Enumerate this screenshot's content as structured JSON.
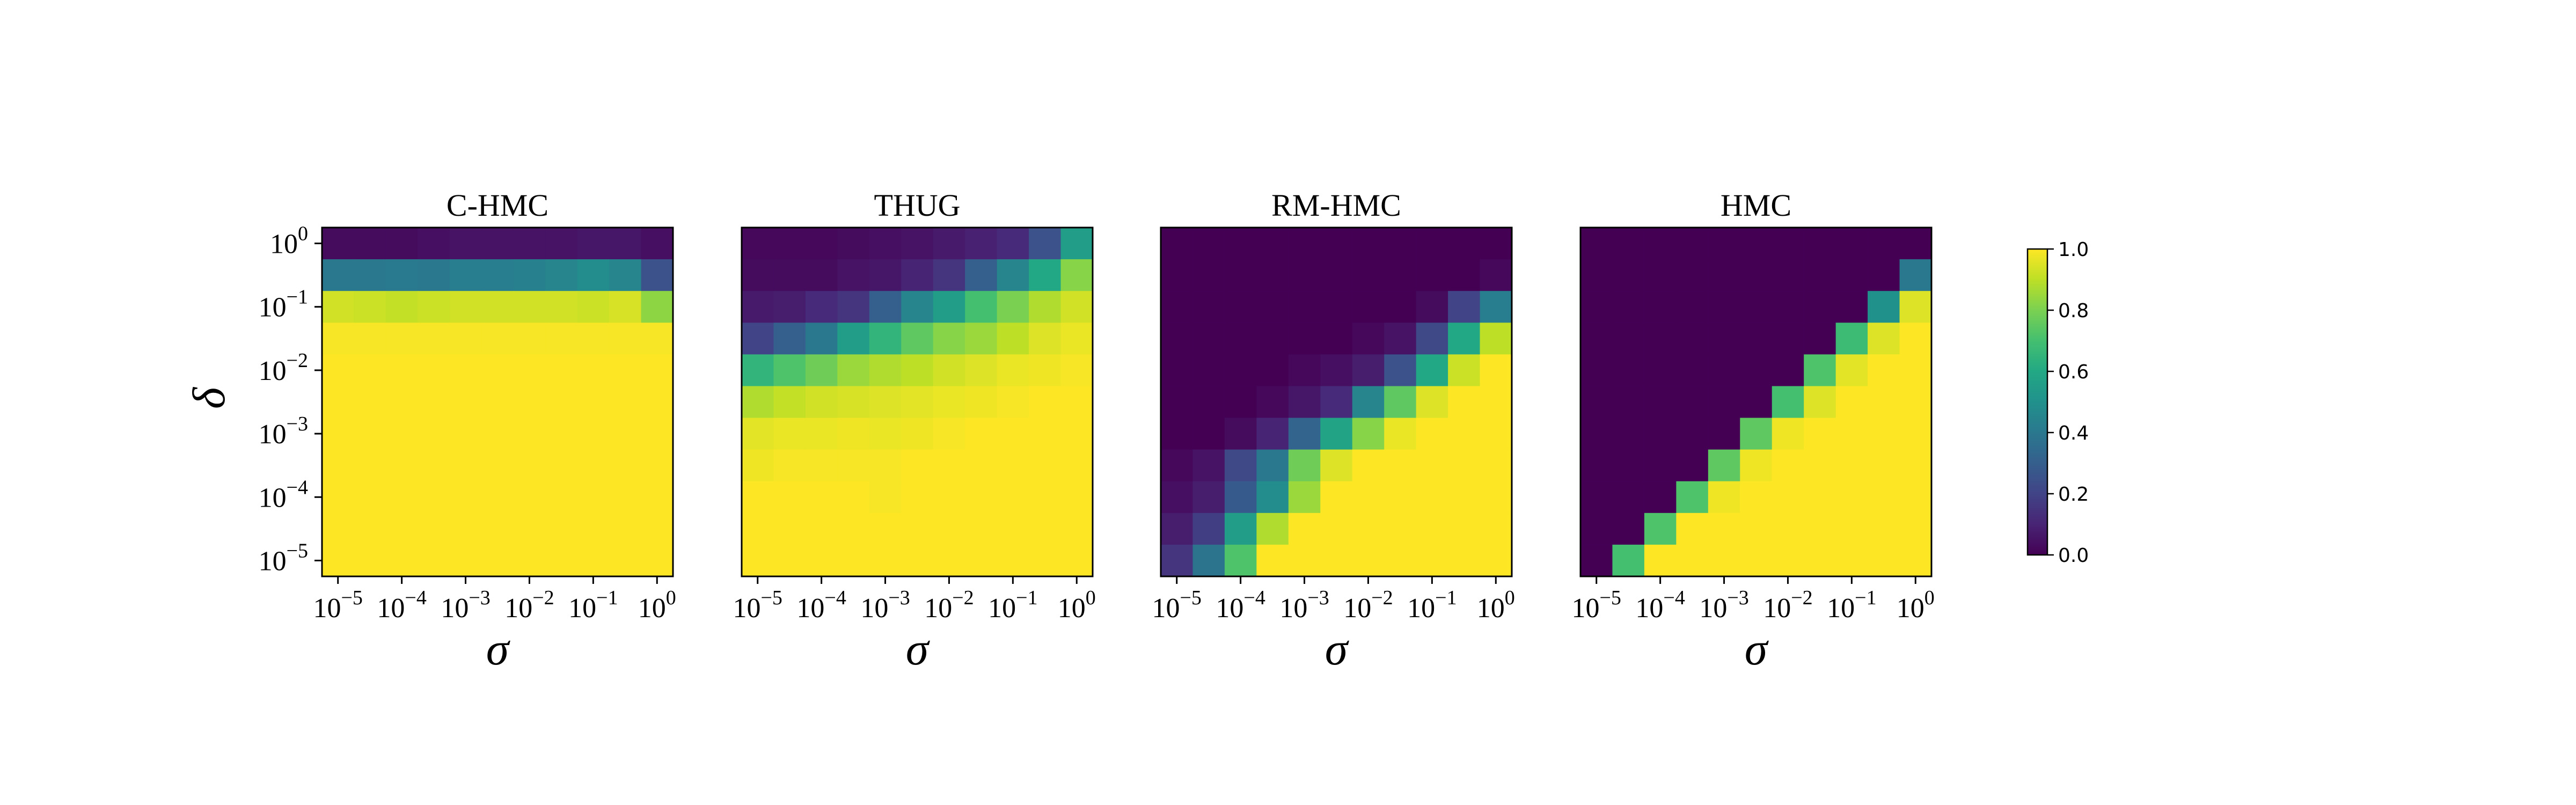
{
  "chart_data": {
    "type": "heatmap",
    "colormap": "viridis",
    "x_ticks": [
      "-5",
      "-4",
      "-3",
      "-2",
      "-1",
      "0"
    ],
    "y_ticks": [
      "0",
      "-1",
      "-2",
      "-3",
      "-4",
      "-5"
    ],
    "tick_base": "10",
    "xlabel": "σ",
    "ylabel": "δ",
    "x_scale": "log",
    "y_scale": "log",
    "x_range": [
      1e-05,
      1
    ],
    "y_range": [
      1e-05,
      1
    ],
    "colorbar": {
      "range": [
        0.0,
        1.0
      ],
      "ticks": [
        "1.0",
        "0.8",
        "0.6",
        "0.4",
        "0.2",
        "0.0"
      ],
      "placement": "right"
    },
    "panels": [
      {
        "title": "C-HMC",
        "values": [
          [
            0.03,
            0.03,
            0.03,
            0.04,
            0.05,
            0.05,
            0.05,
            0.05,
            0.06,
            0.06,
            0.04
          ],
          [
            0.4,
            0.4,
            0.41,
            0.4,
            0.42,
            0.42,
            0.43,
            0.45,
            0.48,
            0.45,
            0.25
          ],
          [
            0.93,
            0.92,
            0.91,
            0.92,
            0.93,
            0.93,
            0.93,
            0.93,
            0.92,
            0.94,
            0.83
          ],
          [
            0.99,
            0.99,
            0.99,
            0.99,
            0.99,
            0.99,
            0.99,
            0.99,
            0.99,
            0.99,
            0.99
          ],
          [
            1,
            1,
            1,
            1,
            1,
            1,
            1,
            1,
            1,
            1,
            1
          ],
          [
            1,
            1,
            1,
            1,
            1,
            1,
            1,
            1,
            1,
            1,
            1
          ],
          [
            1,
            1,
            1,
            1,
            1,
            1,
            1,
            1,
            1,
            1,
            1
          ],
          [
            1,
            1,
            1,
            1,
            1,
            1,
            1,
            1,
            1,
            1,
            1
          ],
          [
            1,
            1,
            1,
            1,
            1,
            1,
            1,
            1,
            1,
            1,
            1
          ],
          [
            1,
            1,
            1,
            1,
            1,
            1,
            1,
            1,
            1,
            1,
            1
          ],
          [
            1,
            1,
            1,
            1,
            1,
            1,
            1,
            1,
            1,
            1,
            1
          ]
        ]
      },
      {
        "title": "THUG",
        "values": [
          [
            0.02,
            0.02,
            0.02,
            0.03,
            0.04,
            0.05,
            0.07,
            0.09,
            0.12,
            0.25,
            0.55
          ],
          [
            0.03,
            0.03,
            0.03,
            0.05,
            0.06,
            0.1,
            0.15,
            0.3,
            0.45,
            0.6,
            0.82
          ],
          [
            0.07,
            0.08,
            0.12,
            0.15,
            0.3,
            0.45,
            0.55,
            0.7,
            0.8,
            0.88,
            0.93
          ],
          [
            0.2,
            0.3,
            0.4,
            0.55,
            0.65,
            0.75,
            0.82,
            0.85,
            0.9,
            0.95,
            0.97
          ],
          [
            0.65,
            0.72,
            0.78,
            0.85,
            0.88,
            0.9,
            0.93,
            0.95,
            0.97,
            0.98,
            0.99
          ],
          [
            0.88,
            0.91,
            0.93,
            0.94,
            0.95,
            0.96,
            0.97,
            0.98,
            0.99,
            1,
            1
          ],
          [
            0.96,
            0.97,
            0.97,
            0.98,
            0.97,
            0.98,
            0.99,
            1,
            1,
            1,
            1
          ],
          [
            0.98,
            0.99,
            0.99,
            0.99,
            0.99,
            1,
            1,
            1,
            1,
            1,
            1
          ],
          [
            1,
            1,
            1,
            1,
            0.99,
            1,
            1,
            1,
            1,
            1,
            1
          ],
          [
            1,
            1,
            1,
            1,
            1,
            1,
            1,
            1,
            1,
            1,
            1
          ],
          [
            1,
            1,
            1,
            1,
            1,
            1,
            1,
            1,
            1,
            1,
            1
          ]
        ]
      },
      {
        "title": "RM-HMC",
        "values": [
          [
            0,
            0,
            0,
            0,
            0,
            0,
            0,
            0,
            0,
            0,
            0
          ],
          [
            0,
            0,
            0,
            0,
            0,
            0,
            0,
            0,
            0,
            0,
            0.02
          ],
          [
            0,
            0,
            0,
            0,
            0,
            0,
            0,
            0,
            0.03,
            0.2,
            0.42
          ],
          [
            0,
            0,
            0,
            0,
            0,
            0,
            0.02,
            0.05,
            0.22,
            0.6,
            0.9
          ],
          [
            0,
            0,
            0,
            0,
            0.02,
            0.04,
            0.08,
            0.25,
            0.6,
            0.92,
            1
          ],
          [
            0,
            0,
            0,
            0.02,
            0.06,
            0.12,
            0.45,
            0.75,
            0.95,
            1,
            1
          ],
          [
            0,
            0,
            0.03,
            0.1,
            0.32,
            0.58,
            0.82,
            0.97,
            1,
            1,
            1
          ],
          [
            0.02,
            0.05,
            0.22,
            0.4,
            0.78,
            0.95,
            1,
            1,
            1,
            1,
            1
          ],
          [
            0.04,
            0.08,
            0.28,
            0.48,
            0.85,
            1,
            1,
            1,
            1,
            1,
            1
          ],
          [
            0.08,
            0.18,
            0.55,
            0.88,
            1,
            1,
            1,
            1,
            1,
            1,
            1
          ],
          [
            0.15,
            0.38,
            0.72,
            1,
            1,
            1,
            1,
            1,
            1,
            1,
            1
          ]
        ]
      },
      {
        "title": "HMC",
        "values": [
          [
            0,
            0,
            0,
            0,
            0,
            0,
            0,
            0,
            0,
            0,
            0
          ],
          [
            0,
            0,
            0,
            0,
            0,
            0,
            0,
            0,
            0,
            0,
            0.4
          ],
          [
            0,
            0,
            0,
            0,
            0,
            0,
            0,
            0,
            0,
            0.5,
            0.95
          ],
          [
            0,
            0,
            0,
            0,
            0,
            0,
            0,
            0,
            0.68,
            0.95,
            1
          ],
          [
            0,
            0,
            0,
            0,
            0,
            0,
            0,
            0.72,
            0.96,
            1,
            1
          ],
          [
            0,
            0,
            0,
            0,
            0,
            0,
            0.7,
            0.95,
            1,
            1,
            1
          ],
          [
            0,
            0,
            0,
            0,
            0,
            0.75,
            0.98,
            1,
            1,
            1,
            1
          ],
          [
            0,
            0,
            0,
            0,
            0.75,
            0.98,
            1,
            1,
            1,
            1,
            1
          ],
          [
            0,
            0,
            0,
            0.72,
            0.98,
            1,
            1,
            1,
            1,
            1,
            1
          ],
          [
            0,
            0,
            0.72,
            1,
            1,
            1,
            1,
            1,
            1,
            1,
            1
          ],
          [
            0,
            0.7,
            1,
            1,
            1,
            1,
            1,
            1,
            1,
            1,
            1
          ]
        ]
      }
    ]
  }
}
